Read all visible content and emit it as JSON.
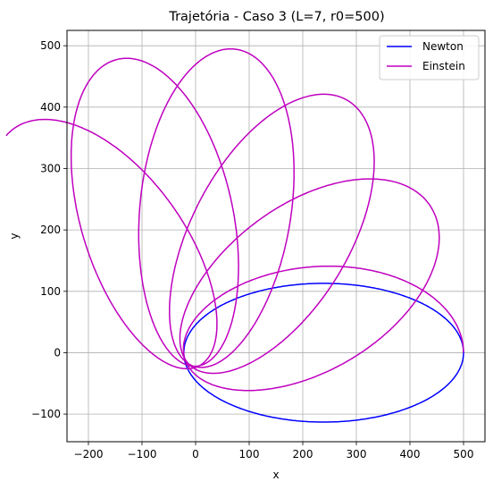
{
  "chart_data": {
    "type": "line",
    "title": "Trajetória - Caso 3 (L=7, r0=500)",
    "xlabel": "x",
    "ylabel": "y",
    "xlim": [
      -240,
      540
    ],
    "ylim": [
      -145,
      525
    ],
    "xticks": [
      -200,
      -100,
      0,
      100,
      200,
      300,
      400,
      500
    ],
    "yticks": [
      -100,
      0,
      100,
      200,
      300,
      400,
      500
    ],
    "grid": true,
    "legend_position": "top-right",
    "series": [
      {
        "name": "Newton",
        "color": "#0000ff",
        "shape": "ellipse",
        "center": [
          239,
          0
        ],
        "semi_axes": [
          261,
          113
        ],
        "tilt_deg": 0,
        "sweep_deg": [
          0,
          360
        ]
      },
      {
        "name": "Einstein",
        "color": "#bf00bf",
        "shape": "precessing-ellipse",
        "center": [
          239,
          0
        ],
        "semi_axes": [
          261,
          113
        ],
        "precession_deg_per_orbit": 27,
        "sweep_deg": [
          0,
          1800
        ]
      }
    ]
  }
}
